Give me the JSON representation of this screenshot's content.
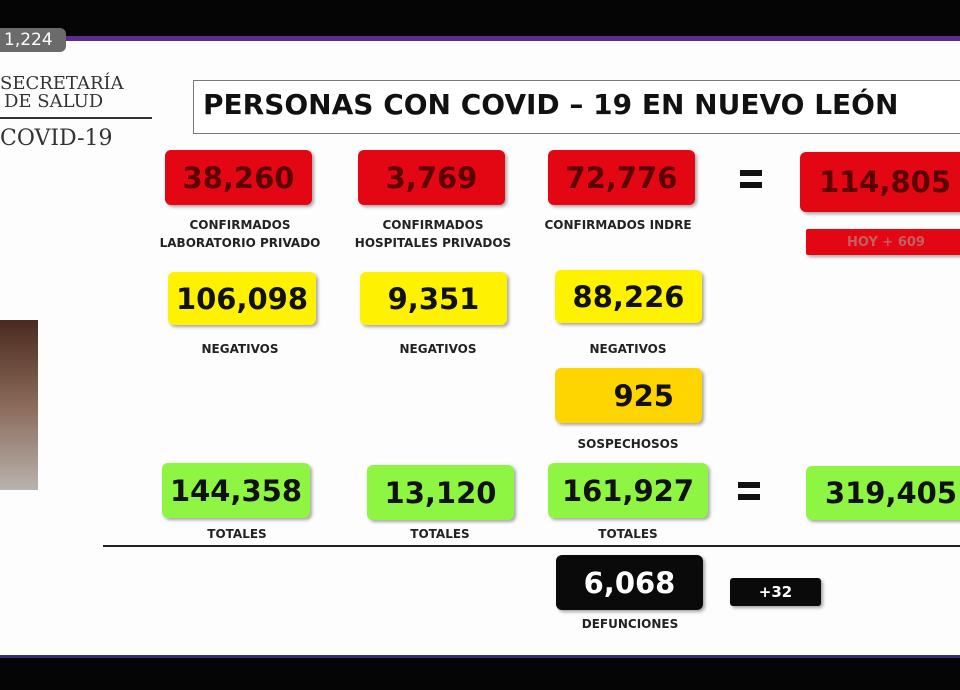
{
  "overlay": {
    "views": "1,224"
  },
  "logo": {
    "line1": "SECRETARÍA",
    "line2": "DE SALUD",
    "line3": "COVID-19"
  },
  "title": "PERSONAS CON COVID – 19 EN NUEVO LEÓN",
  "confirmed": [
    {
      "value": "38,260",
      "label": [
        "CONFIRMADOS",
        "LABORATORIO PRIVADO"
      ]
    },
    {
      "value": "3,769",
      "label": [
        "CONFIRMADOS",
        "HOSPITALES PRIVADOS"
      ]
    },
    {
      "value": "72,776",
      "label": [
        "CONFIRMADOS INDRE"
      ]
    }
  ],
  "confirmed_total": {
    "value": "114,805",
    "today": "HOY + 609"
  },
  "negatives": [
    {
      "value": "106,098",
      "label": "NEGATIVOS"
    },
    {
      "value": "9,351",
      "label": "NEGATIVOS"
    },
    {
      "value": "88,226",
      "label": "NEGATIVOS"
    }
  ],
  "suspects": {
    "value": "925",
    "label": "SOSPECHOSOS"
  },
  "totals": [
    {
      "value": "144,358",
      "label": "TOTALES"
    },
    {
      "value": "13,120",
      "label": "TOTALES"
    },
    {
      "value": "161,927",
      "label": "TOTALES"
    }
  ],
  "grand_total": {
    "value": "319,405"
  },
  "deaths": {
    "value": "6,068",
    "label": "DEFUNCIONES",
    "today": "+32"
  }
}
